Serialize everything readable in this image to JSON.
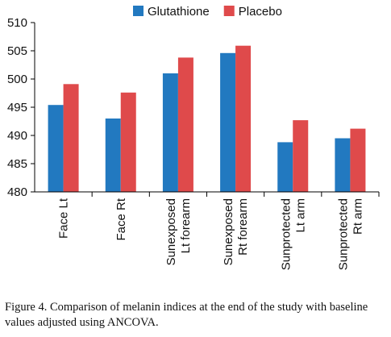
{
  "chart_data": {
    "type": "bar",
    "categories": [
      [
        "Face Lt"
      ],
      [
        "Face Rt"
      ],
      [
        "Sunexposed",
        "Lt forearm"
      ],
      [
        "Sunexposed",
        "Rt forearm"
      ],
      [
        "Sunprotected",
        "Lt arm"
      ],
      [
        "Sunprotected",
        "Rt arm"
      ]
    ],
    "series": [
      {
        "name": "Glutathione",
        "color": "#2279c0",
        "values": [
          495.4,
          493.0,
          501.0,
          504.6,
          488.8,
          489.5
        ]
      },
      {
        "name": "Placebo",
        "color": "#df4a4b",
        "values": [
          499.1,
          497.6,
          503.8,
          505.9,
          492.7,
          491.2
        ]
      }
    ],
    "ylim": [
      480,
      510
    ],
    "yticks": [
      480,
      485,
      490,
      495,
      500,
      505,
      510
    ],
    "grid": false,
    "legend": "top-center"
  },
  "caption": "Figure 4. Comparison of melanin indices at the end of the study with baseline values adjusted using ANCOVA."
}
